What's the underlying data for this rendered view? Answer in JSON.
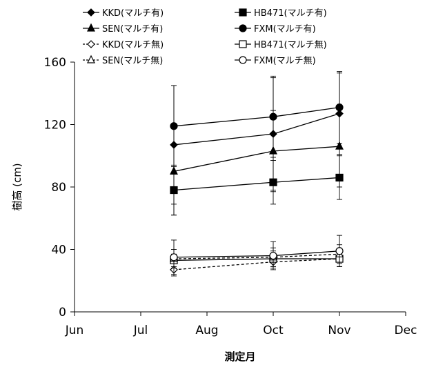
{
  "chart_data": {
    "type": "line",
    "title": "",
    "xlabel": "測定月",
    "ylabel": "樹高 (cm)",
    "ylim": [
      0,
      160
    ],
    "yticks": [
      0,
      40,
      80,
      120,
      160
    ],
    "xticks": [
      "Jun",
      "Jul",
      "Aug",
      "Oct",
      "Nov",
      "Dec"
    ],
    "legend_position": "top",
    "grid": false,
    "series": [
      {
        "name": "KKD(マルチ有)",
        "marker": "diamond",
        "filled": true,
        "dashed": false,
        "x": [
          "Jul-Aug",
          "Oct",
          "Nov"
        ],
        "y": [
          107,
          114,
          127
        ],
        "err": [
          38,
          36,
          26
        ]
      },
      {
        "name": "HB471(マルチ有)",
        "marker": "square",
        "filled": true,
        "dashed": false,
        "x": [
          "Jul-Aug",
          "Oct",
          "Nov"
        ],
        "y": [
          78,
          83,
          86
        ],
        "err": [
          16,
          14,
          14
        ]
      },
      {
        "name": "SEN(マルチ有)",
        "marker": "triangle",
        "filled": true,
        "dashed": false,
        "x": [
          "Jul-Aug",
          "Oct",
          "Nov"
        ],
        "y": [
          90,
          103,
          106
        ],
        "err": [
          28,
          26,
          26
        ]
      },
      {
        "name": "FXM(マルチ有)",
        "marker": "circle",
        "filled": true,
        "dashed": false,
        "x": [
          "Jul-Aug",
          "Oct",
          "Nov"
        ],
        "y": [
          119,
          125,
          131
        ],
        "err": [
          26,
          26,
          23
        ]
      },
      {
        "name": "KKD(マルチ無)",
        "marker": "diamond",
        "filled": false,
        "dashed": true,
        "x": [
          "Jul-Aug",
          "Oct",
          "Nov"
        ],
        "y": [
          27,
          32,
          34
        ],
        "err": [
          4,
          4,
          5
        ]
      },
      {
        "name": "HB471(マルチ無)",
        "marker": "square",
        "filled": false,
        "dashed": false,
        "x": [
          "Jul-Aug",
          "Oct",
          "Nov"
        ],
        "y": [
          33,
          34,
          34
        ],
        "err": [
          4,
          5,
          5
        ]
      },
      {
        "name": "SEN(マルチ無)",
        "marker": "triangle",
        "filled": false,
        "dashed": true,
        "x": [
          "Jul-Aug",
          "Oct",
          "Nov"
        ],
        "y": [
          34,
          35,
          37
        ],
        "err": [
          6,
          6,
          6
        ]
      },
      {
        "name": "FXM(マルチ無)",
        "marker": "circle",
        "filled": false,
        "dashed": false,
        "x": [
          "Jul-Aug",
          "Oct",
          "Nov"
        ],
        "y": [
          35,
          36,
          39
        ],
        "err": [
          11,
          9,
          10
        ]
      }
    ]
  }
}
